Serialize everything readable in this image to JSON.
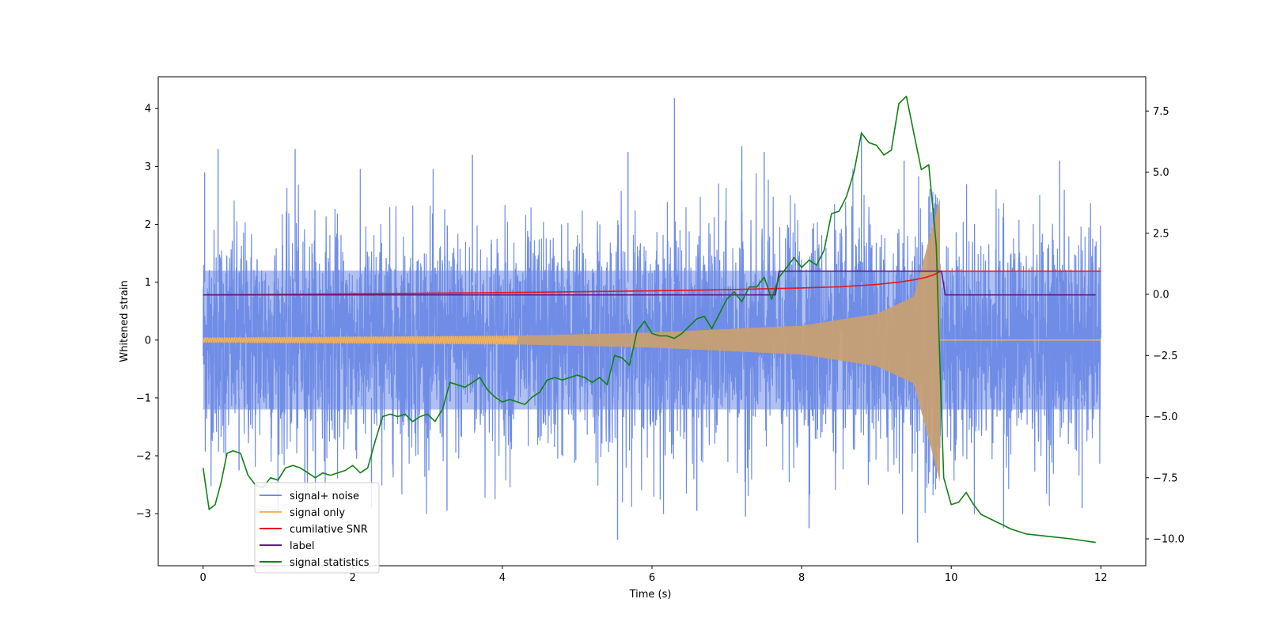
{
  "chart_data": {
    "type": "line",
    "title": "",
    "xlabel": "Time (s)",
    "ylabel": "Whitened strain",
    "y2label": "",
    "xlim": [
      -0.6,
      12.6
    ],
    "ylim": [
      -3.9,
      4.55
    ],
    "y2lim": [
      -11.1,
      8.9
    ],
    "x_ticks": [
      0,
      2,
      4,
      6,
      8,
      10,
      12
    ],
    "x_tick_labels": [
      "0",
      "2",
      "4",
      "6",
      "8",
      "10",
      "12"
    ],
    "y_ticks": [
      -3,
      -2,
      -1,
      0,
      1,
      2,
      3,
      4
    ],
    "y_tick_labels": [
      "−3",
      "−2",
      "−1",
      "0",
      "1",
      "2",
      "3",
      "4"
    ],
    "y2_ticks": [
      -10,
      -7.5,
      -5,
      -2.5,
      0,
      2.5,
      5,
      7.5
    ],
    "y2_tick_labels": [
      "−10.0",
      "−7.5",
      "−5.0",
      "−2.5",
      "0.0",
      "2.5",
      "5.0",
      "7.5"
    ],
    "grid": false,
    "legend_position": "lower-left",
    "series": [
      {
        "name": "signal+ noise",
        "color": "#6f8de6",
        "axis": "left",
        "kind": "noise-plus-chirp",
        "x_range": [
          0,
          12
        ],
        "noise_center_band": [
          -1.2,
          1.2
        ],
        "noise_extreme_range": [
          -3.5,
          4.2
        ],
        "spikes": [
          [
            0.02,
            2.9
          ],
          [
            0.2,
            3.3
          ],
          [
            1.23,
            3.3
          ],
          [
            3.6,
            3.2
          ],
          [
            5.68,
            3.25
          ],
          [
            6.3,
            4.18
          ],
          [
            7.2,
            3.35
          ],
          [
            7.5,
            3.25
          ],
          [
            8.8,
            3.6
          ],
          [
            9.37,
            3.1
          ],
          [
            11.45,
            3.1
          ],
          [
            0.48,
            -2.25
          ],
          [
            1.36,
            -2.6
          ],
          [
            2.25,
            -2.9
          ],
          [
            3.26,
            -2.95
          ],
          [
            5.54,
            -3.45
          ],
          [
            6.6,
            -2.95
          ],
          [
            7.25,
            -3.05
          ],
          [
            8.1,
            -3.25
          ],
          [
            9.55,
            -3.5
          ],
          [
            10.7,
            -3.25
          ],
          [
            11.75,
            -2.9
          ]
        ]
      },
      {
        "name": "signal only",
        "color": "#f5b45a",
        "axis": "left",
        "kind": "chirp",
        "t_merger": 9.85,
        "amplitude_envelope": [
          [
            0,
            0.04
          ],
          [
            4,
            0.07
          ],
          [
            6,
            0.13
          ],
          [
            8,
            0.25
          ],
          [
            9,
            0.45
          ],
          [
            9.5,
            0.75
          ],
          [
            9.85,
            2.45
          ]
        ],
        "after_merger_value": 0.0,
        "x_end": 12
      },
      {
        "name": "cumilative SNR",
        "color": "#e8161a",
        "axis": "left",
        "x": [
          0,
          2,
          4,
          6,
          7,
          8,
          8.5,
          9,
          9.3,
          9.5,
          9.65,
          9.75,
          9.82,
          9.86,
          12
        ],
        "y": [
          0.78,
          0.8,
          0.82,
          0.85,
          0.87,
          0.9,
          0.92,
          0.96,
          1.0,
          1.04,
          1.08,
          1.12,
          1.16,
          1.19,
          1.19
        ]
      },
      {
        "name": "label",
        "color": "#5d1a8a",
        "axis": "left",
        "x": [
          0,
          7.65,
          7.7,
          9.87,
          9.92,
          11.93
        ],
        "y": [
          0.78,
          0.78,
          1.19,
          1.19,
          0.78,
          0.78
        ]
      },
      {
        "name": "signal statistics",
        "color": "#128012",
        "axis": "right",
        "x": [
          0,
          0.08,
          0.16,
          0.24,
          0.32,
          0.4,
          0.5,
          0.6,
          0.7,
          0.8,
          0.9,
          1.0,
          1.1,
          1.2,
          1.3,
          1.4,
          1.5,
          1.6,
          1.7,
          1.8,
          1.9,
          2.0,
          2.1,
          2.2,
          2.3,
          2.4,
          2.5,
          2.6,
          2.7,
          2.8,
          2.9,
          3.0,
          3.1,
          3.2,
          3.3,
          3.4,
          3.5,
          3.6,
          3.7,
          3.8,
          3.9,
          4.0,
          4.1,
          4.2,
          4.3,
          4.4,
          4.5,
          4.6,
          4.7,
          4.8,
          4.9,
          5.0,
          5.1,
          5.2,
          5.3,
          5.4,
          5.5,
          5.6,
          5.7,
          5.8,
          5.9,
          6.0,
          6.1,
          6.2,
          6.3,
          6.4,
          6.5,
          6.6,
          6.7,
          6.8,
          6.9,
          7.0,
          7.1,
          7.2,
          7.3,
          7.4,
          7.5,
          7.6,
          7.7,
          7.8,
          7.9,
          8.0,
          8.1,
          8.2,
          8.3,
          8.4,
          8.5,
          8.6,
          8.7,
          8.8,
          8.9,
          9.0,
          9.1,
          9.2,
          9.3,
          9.4,
          9.5,
          9.6,
          9.7,
          9.8,
          9.85,
          9.9,
          10.0,
          10.1,
          10.2,
          10.3,
          10.4,
          10.6,
          10.8,
          11.0,
          11.3,
          11.6,
          11.93
        ],
        "y": [
          -7.1,
          -8.8,
          -8.6,
          -7.7,
          -6.5,
          -6.4,
          -6.5,
          -7.4,
          -7.8,
          -7.9,
          -7.5,
          -7.6,
          -7.1,
          -7.0,
          -7.1,
          -7.3,
          -7.5,
          -7.3,
          -7.4,
          -7.3,
          -7.2,
          -7.0,
          -7.3,
          -7.1,
          -6.0,
          -5.0,
          -4.9,
          -5.0,
          -4.9,
          -5.2,
          -5.0,
          -4.9,
          -5.2,
          -4.7,
          -3.6,
          -3.7,
          -3.8,
          -3.6,
          -3.4,
          -3.9,
          -4.2,
          -4.4,
          -4.3,
          -4.4,
          -4.5,
          -4.2,
          -4.0,
          -3.5,
          -3.4,
          -3.5,
          -3.4,
          -3.3,
          -3.4,
          -3.6,
          -3.4,
          -3.7,
          -2.5,
          -2.6,
          -2.9,
          -1.5,
          -1.1,
          -1.6,
          -1.7,
          -1.7,
          -1.8,
          -1.6,
          -1.3,
          -1.0,
          -0.9,
          -1.4,
          -0.8,
          -0.2,
          0.1,
          -0.3,
          0.3,
          0.3,
          0.7,
          -0.2,
          0.7,
          1.1,
          1.5,
          1.1,
          1.4,
          1.2,
          1.8,
          3.3,
          3.4,
          4.0,
          5.0,
          6.6,
          6.2,
          6.1,
          5.7,
          5.9,
          7.8,
          8.1,
          6.6,
          5.1,
          5.3,
          2.0,
          -3.0,
          -7.5,
          -8.6,
          -8.5,
          -8.1,
          -8.6,
          -9.0,
          -9.3,
          -9.6,
          -9.8,
          -9.9,
          -10.0,
          -10.15
        ]
      }
    ]
  }
}
